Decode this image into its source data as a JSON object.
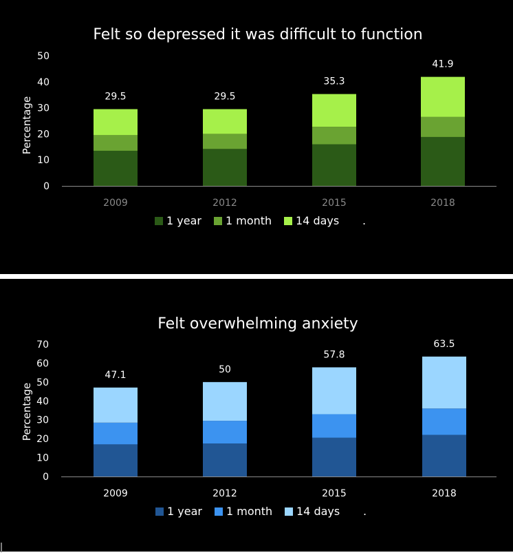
{
  "chart_data": [
    {
      "type": "bar",
      "stacked": true,
      "title": "Felt so depressed it was difficult to function",
      "ylabel": "Percentage",
      "xlabel": "",
      "categories": [
        "2009",
        "2012",
        "2015",
        "2018"
      ],
      "ylim": [
        0,
        50
      ],
      "yticks": [
        0,
        10,
        20,
        30,
        40,
        50
      ],
      "series": [
        {
          "name": "1 year",
          "values": [
            13.5,
            14.2,
            16.0,
            18.8
          ],
          "color": "#2b5a17"
        },
        {
          "name": "1 month",
          "values": [
            6.0,
            5.8,
            6.7,
            7.7
          ],
          "color": "#6aa332"
        },
        {
          "name": "14 days",
          "values": [
            10.0,
            9.5,
            12.6,
            15.4
          ],
          "color": "#a6f04a"
        }
      ],
      "totals": [
        "29.5",
        "29.5",
        "35.3",
        "41.9"
      ],
      "legend_placement": "bottom",
      "legend_trailing_text": ".",
      "grid": false,
      "tick_color": "#8a8a8a"
    },
    {
      "type": "bar",
      "stacked": true,
      "title": "Felt overwhelming anxiety",
      "ylabel": "Percentage",
      "xlabel": "",
      "categories": [
        "2009",
        "2012",
        "2015",
        "2018"
      ],
      "ylim": [
        0,
        70
      ],
      "yticks": [
        0,
        10,
        20,
        30,
        40,
        50,
        60,
        70
      ],
      "series": [
        {
          "name": "1 year",
          "values": [
            17.0,
            17.5,
            20.5,
            22.0
          ],
          "color": "#215694"
        },
        {
          "name": "1 month",
          "values": [
            11.5,
            12.0,
            12.5,
            14.0
          ],
          "color": "#3c93f0"
        },
        {
          "name": "14 days",
          "values": [
            18.6,
            20.5,
            24.8,
            27.5
          ],
          "color": "#9bd6ff"
        }
      ],
      "totals": [
        "47.1",
        "50",
        "57.8",
        "63.5"
      ],
      "legend_placement": "bottom",
      "legend_trailing_text": ".",
      "grid": false,
      "tick_color": "#ffffff"
    }
  ]
}
